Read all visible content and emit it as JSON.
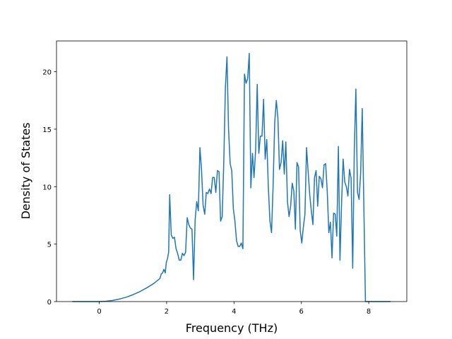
{
  "chart_data": {
    "type": "line",
    "x_label": "Frequency (THz)",
    "y_label": "Density of States",
    "xlim": [
      -1.27,
      9.13
    ],
    "ylim": [
      0,
      22.68
    ],
    "xticks": [
      0,
      2,
      4,
      6,
      8
    ],
    "yticks": [
      0,
      5,
      10,
      15,
      20
    ],
    "series": [
      {
        "color": "#1f77b4",
        "x": [
          -0.8,
          -0.4,
          0,
          0.2,
          0.4,
          0.6,
          0.8,
          1.0,
          1.2,
          1.4,
          1.6,
          1.8,
          1.84,
          1.88,
          1.92,
          1.96,
          1.99,
          2.03,
          2.06,
          2.09,
          2.137,
          2.185,
          2.232,
          2.279,
          2.326,
          2.374,
          2.421,
          2.468,
          2.515,
          2.563,
          2.61,
          2.657,
          2.704,
          2.752,
          2.799,
          2.846,
          2.893,
          2.941,
          2.988,
          3.035,
          3.082,
          3.13,
          3.177,
          3.224,
          3.271,
          3.319,
          3.366,
          3.413,
          3.46,
          3.508,
          3.555,
          3.602,
          3.649,
          3.697,
          3.744,
          3.791,
          3.838,
          3.886,
          3.933,
          3.98,
          4.027,
          4.075,
          4.122,
          4.169,
          4.216,
          4.264,
          4.311,
          4.358,
          4.405,
          4.453,
          4.5,
          4.547,
          4.594,
          4.642,
          4.689,
          4.736,
          4.783,
          4.831,
          4.878,
          4.925,
          4.972,
          5.02,
          5.067,
          5.114,
          5.161,
          5.209,
          5.256,
          5.303,
          5.35,
          5.398,
          5.445,
          5.492,
          5.539,
          5.587,
          5.634,
          5.681,
          5.728,
          5.776,
          5.823,
          5.87,
          5.917,
          5.965,
          6.012,
          6.059,
          6.106,
          6.154,
          6.201,
          6.248,
          6.295,
          6.343,
          6.39,
          6.437,
          6.484,
          6.532,
          6.579,
          6.626,
          6.673,
          6.721,
          6.768,
          6.815,
          6.862,
          6.91,
          6.957,
          7.004,
          7.051,
          7.099,
          7.146,
          7.193,
          7.24,
          7.288,
          7.335,
          7.382,
          7.429,
          7.477,
          7.524,
          7.571,
          7.618,
          7.666,
          7.713,
          7.76,
          7.807,
          7.855,
          7.902,
          8.2,
          8.65
        ],
        "values": [
          0,
          0,
          0,
          0.03,
          0.1,
          0.22,
          0.38,
          0.6,
          0.86,
          1.18,
          1.54,
          2.0,
          2.4,
          2.5,
          2.8,
          2.5,
          3.4,
          3.8,
          4.3,
          9.3,
          5.8,
          5.5,
          5.6,
          4.6,
          4.2,
          3.6,
          3.6,
          4.2,
          4.0,
          4.3,
          7.3,
          6.7,
          6.4,
          6.3,
          1.9,
          7.1,
          8.7,
          7.9,
          13.4,
          11.5,
          8.4,
          7.6,
          9.5,
          9.4,
          9.8,
          9.4,
          10.8,
          10.8,
          9.5,
          11.4,
          11.3,
          7.0,
          7.4,
          12.2,
          18.6,
          21.3,
          15.0,
          12.0,
          11.4,
          8.1,
          7.0,
          5.3,
          4.8,
          4.8,
          5.1,
          4.6,
          19.8,
          19.0,
          19.4,
          21.6,
          9.9,
          12.9,
          10.8,
          13.2,
          18.9,
          12.9,
          14.4,
          14.4,
          17.6,
          12.4,
          14.1,
          9.9,
          7.0,
          6.0,
          10.1,
          15.6,
          17.5,
          16.0,
          11.5,
          12.1,
          14.0,
          11.1,
          13.9,
          8.7,
          7.4,
          8.3,
          10.3,
          9.6,
          6.3,
          12.1,
          11.7,
          6.2,
          5.1,
          6.5,
          7.6,
          13.4,
          11.3,
          9.3,
          7.9,
          6.7,
          10.8,
          11.4,
          8.3,
          10.9,
          10.7,
          9.9,
          11.9,
          12.0,
          9.6,
          6.0,
          6.9,
          3.8,
          7.7,
          7.6,
          5.7,
          13.5,
          3.6,
          8.5,
          12.4,
          10.4,
          10.0,
          9.2,
          11.5,
          10.7,
          2.9,
          13.2,
          18.5,
          9.5,
          8.9,
          11.2,
          16.8,
          8.3,
          0,
          0,
          0
        ]
      }
    ]
  }
}
